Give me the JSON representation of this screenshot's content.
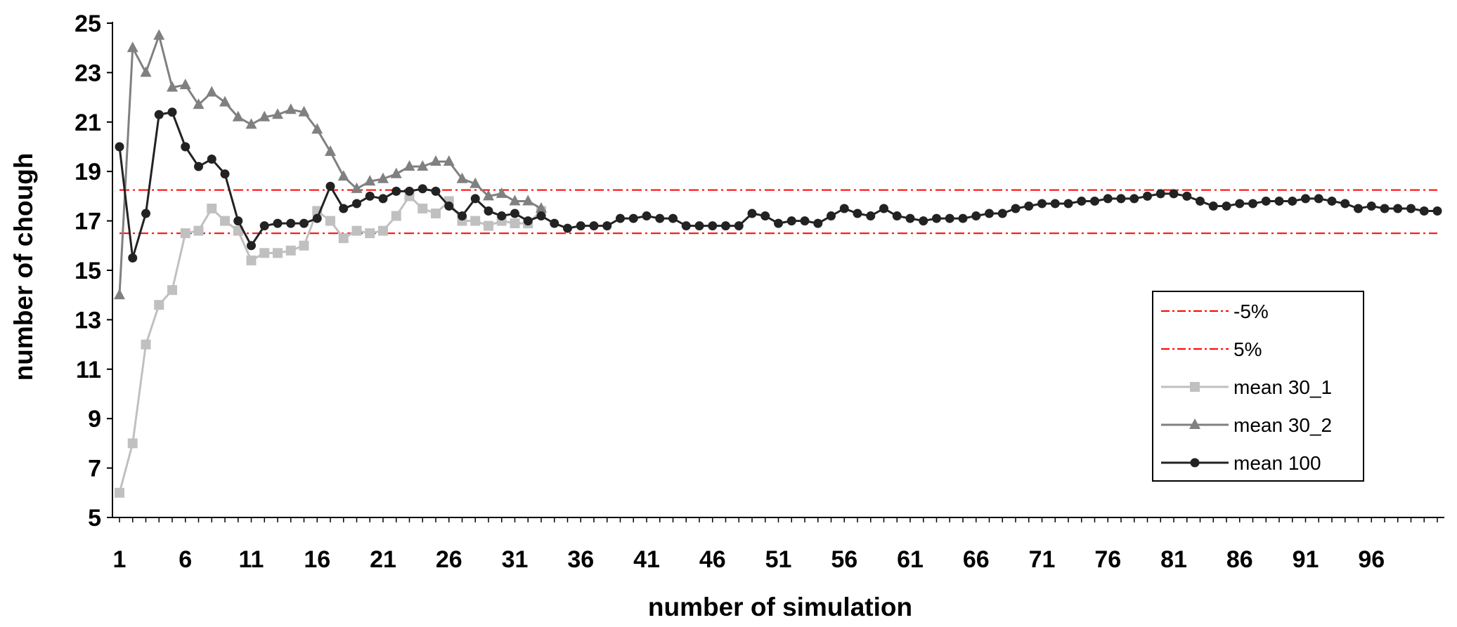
{
  "chart_data": {
    "type": "line",
    "title": "",
    "xlabel": "number of simulation",
    "ylabel": "number of chough",
    "ylim": [
      5,
      25
    ],
    "xlim": [
      1,
      101
    ],
    "y_ticks": [
      5,
      7,
      9,
      11,
      13,
      15,
      17,
      19,
      21,
      23,
      25
    ],
    "x_ticks": [
      1,
      6,
      11,
      16,
      21,
      26,
      31,
      36,
      41,
      46,
      51,
      56,
      61,
      66,
      71,
      76,
      81,
      86,
      91,
      96
    ],
    "grid": false,
    "legend_position": "right",
    "series": [
      {
        "name": "-5%",
        "color": "#ff0000",
        "style": "dash-dot",
        "constant": 16.5
      },
      {
        "name": "5%",
        "color": "#ff0000",
        "style": "dash-dot",
        "constant": 18.25
      },
      {
        "name": "mean 30_1",
        "color": "#c0c0c0",
        "marker": "square",
        "x": [
          1,
          2,
          3,
          4,
          5,
          6,
          7,
          8,
          9,
          10,
          11,
          12,
          13,
          14,
          15,
          16,
          17,
          18,
          19,
          20,
          21,
          22,
          23,
          24,
          25,
          26,
          27,
          28,
          29,
          30,
          31,
          32,
          33
        ],
        "values": [
          6.0,
          8.0,
          12.0,
          13.6,
          14.2,
          16.5,
          16.6,
          17.5,
          17.0,
          16.6,
          15.4,
          15.7,
          15.7,
          15.8,
          16.0,
          17.4,
          17.0,
          16.3,
          16.6,
          16.5,
          16.6,
          17.2,
          18.0,
          17.5,
          17.3,
          17.8,
          17.0,
          17.0,
          16.8,
          17.0,
          16.9,
          16.9,
          17.4
        ]
      },
      {
        "name": "mean 30_2",
        "color": "#808080",
        "marker": "triangle",
        "x": [
          1,
          2,
          3,
          4,
          5,
          6,
          7,
          8,
          9,
          10,
          11,
          12,
          13,
          14,
          15,
          16,
          17,
          18,
          19,
          20,
          21,
          22,
          23,
          24,
          25,
          26,
          27,
          28,
          29,
          30,
          31,
          32,
          33
        ],
        "values": [
          14.0,
          24.0,
          23.0,
          24.5,
          22.4,
          22.5,
          21.7,
          22.2,
          21.8,
          21.2,
          20.9,
          21.2,
          21.3,
          21.5,
          21.4,
          20.7,
          19.8,
          18.8,
          18.3,
          18.6,
          18.7,
          18.9,
          19.2,
          19.2,
          19.4,
          19.4,
          18.7,
          18.5,
          18.0,
          18.1,
          17.8,
          17.8,
          17.5
        ]
      },
      {
        "name": "mean 100",
        "color": "#222222",
        "marker": "circle",
        "x": [
          1,
          2,
          3,
          4,
          5,
          6,
          7,
          8,
          9,
          10,
          11,
          12,
          13,
          14,
          15,
          16,
          17,
          18,
          19,
          20,
          21,
          22,
          23,
          24,
          25,
          26,
          27,
          28,
          29,
          30,
          31,
          32,
          33,
          34,
          35,
          36,
          37,
          38,
          39,
          40,
          41,
          42,
          43,
          44,
          45,
          46,
          47,
          48,
          49,
          50,
          51,
          52,
          53,
          54,
          55,
          56,
          57,
          58,
          59,
          60,
          61,
          62,
          63,
          64,
          65,
          66,
          67,
          68,
          69,
          70,
          71,
          72,
          73,
          74,
          75,
          76,
          77,
          78,
          79,
          80,
          81,
          82,
          83,
          84,
          85,
          86,
          87,
          88,
          89,
          90,
          91,
          92,
          93,
          94,
          95,
          96,
          97,
          98,
          99,
          100,
          101
        ],
        "values": [
          20.0,
          15.5,
          17.3,
          21.3,
          21.4,
          20.0,
          19.2,
          19.5,
          18.9,
          17.0,
          16.0,
          16.8,
          16.9,
          16.9,
          16.9,
          17.1,
          18.4,
          17.5,
          17.7,
          18.0,
          17.9,
          18.2,
          18.2,
          18.3,
          18.2,
          17.6,
          17.2,
          17.9,
          17.4,
          17.2,
          17.3,
          17.0,
          17.2,
          16.9,
          16.7,
          16.8,
          16.8,
          16.8,
          17.1,
          17.1,
          17.2,
          17.1,
          17.1,
          16.8,
          16.8,
          16.8,
          16.8,
          16.8,
          17.3,
          17.2,
          16.9,
          17.0,
          17.0,
          16.9,
          17.2,
          17.5,
          17.3,
          17.2,
          17.5,
          17.2,
          17.1,
          17.0,
          17.1,
          17.1,
          17.1,
          17.2,
          17.3,
          17.3,
          17.5,
          17.6,
          17.7,
          17.7,
          17.7,
          17.8,
          17.8,
          17.9,
          17.9,
          17.9,
          18.0,
          18.1,
          18.1,
          18.0,
          17.8,
          17.6,
          17.6,
          17.7,
          17.7,
          17.8,
          17.8,
          17.8,
          17.9,
          17.9,
          17.8,
          17.7,
          17.5,
          17.6,
          17.5,
          17.5,
          17.5,
          17.4,
          17.4
        ]
      }
    ]
  }
}
